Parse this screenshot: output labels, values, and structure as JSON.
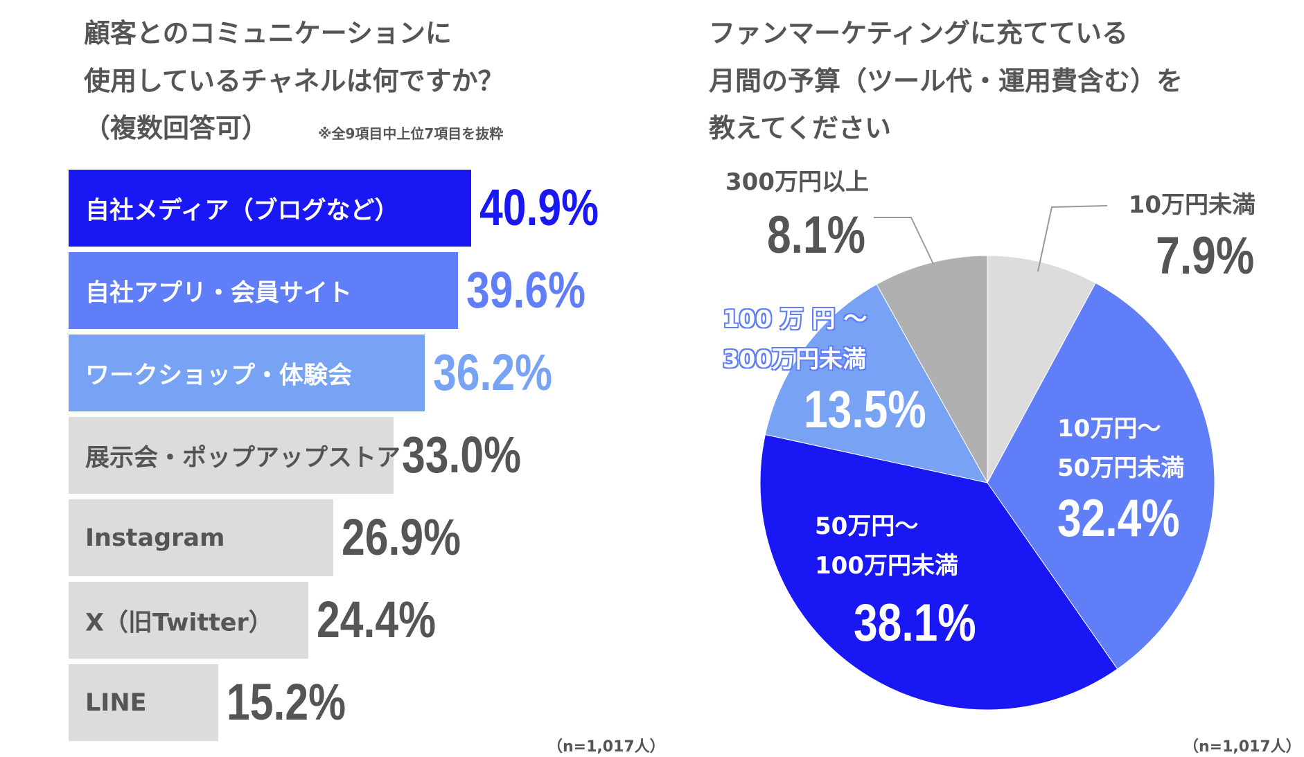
{
  "left": {
    "title_lines": [
      "顧客とのコミュニケーションに",
      "使用しているチャネルは何ですか？",
      "（複数回答可）"
    ],
    "subnote": "※全9項目中上位7項目を抜粋",
    "sample": "（n=1,017人）"
  },
  "right": {
    "title_lines": [
      "ファンマーケティングに充てている",
      "月間の予算（ツール代・運用費含む）を",
      "教えてください"
    ],
    "sample": "（n=1,017人）"
  },
  "colors": {
    "dark_blue": "#1a17f5",
    "mid_blue": "#5f7ef7",
    "light_blue": "#78a3f5",
    "light_gray": "#dcdcdc",
    "gray": "#b0b0b0",
    "text_gray": "#555555"
  },
  "chart_data": [
    {
      "type": "bar",
      "orientation": "horizontal",
      "title": "顧客とのコミュニケーションに使用しているチャネルは何ですか？（複数回答可）",
      "categories": [
        "自社メディア（ブログなど）",
        "自社アプリ・会員サイト",
        "ワークショップ・体験会",
        "展示会・ポップアップストア",
        "Instagram",
        "X（旧Twitter）",
        "LINE"
      ],
      "values": [
        40.9,
        39.6,
        36.2,
        33.0,
        26.9,
        24.4,
        15.2
      ],
      "labels": [
        "40.9%",
        "39.6%",
        "36.2%",
        "33.0%",
        "26.9%",
        "24.4%",
        "15.2%"
      ],
      "bar_colors": [
        "#1a17f5",
        "#5f7ef7",
        "#78a3f5",
        "#dcdcdc",
        "#dcdcdc",
        "#dcdcdc",
        "#dcdcdc"
      ],
      "label_colors": [
        "#ffffff",
        "#ffffff",
        "#ffffff",
        "#555555",
        "#555555",
        "#555555",
        "#555555"
      ],
      "pct_colors": [
        "#1a17f5",
        "#5f7ef7",
        "#78a3f5",
        "#555555",
        "#555555",
        "#555555",
        "#555555"
      ],
      "unit": "%"
    },
    {
      "type": "pie",
      "title": "ファンマーケティングに充てている月間の予算（ツール代・運用費含む）を教えてください",
      "slices": [
        {
          "name": "10万円未満",
          "label_lines": [
            "10万円未満"
          ],
          "value": 7.9,
          "label": "7.9%",
          "color": "#dcdcdc"
        },
        {
          "name": "10万円〜50万円未満",
          "label_lines": [
            "10万円〜",
            "50万円未満"
          ],
          "value": 32.4,
          "label": "32.4%",
          "color": "#5f7ef7"
        },
        {
          "name": "50万円〜100万円未満",
          "label_lines": [
            "50万円〜",
            "100万円未満"
          ],
          "value": 38.1,
          "label": "38.1%",
          "color": "#1a17f5"
        },
        {
          "name": "100万円〜300万円未満",
          "label_lines": [
            "100 万 円 〜",
            "300万円未満"
          ],
          "value": 13.5,
          "label": "13.5%",
          "color": "#78a3f5"
        },
        {
          "name": "300万円以上",
          "label_lines": [
            "300万円以上"
          ],
          "value": 8.1,
          "label": "8.1%",
          "color": "#b0b0b0"
        }
      ],
      "start_angle": "top",
      "direction": "clockwise"
    }
  ]
}
